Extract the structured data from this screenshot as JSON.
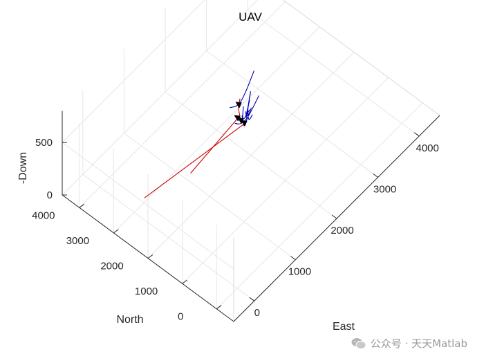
{
  "chart_data": {
    "type": "line3d",
    "title": "UAV",
    "xlabel": "East",
    "ylabel": "North",
    "zlabel": "-Down",
    "x_ticks": [
      "0",
      "1000",
      "2000",
      "3000",
      "4000"
    ],
    "y_ticks": [
      "0",
      "1000",
      "2000",
      "3000",
      "4000"
    ],
    "z_ticks": [
      "0",
      "500"
    ],
    "xlim": [
      -500,
      4500
    ],
    "ylim": [
      -500,
      4500
    ],
    "zlim": [
      0,
      800
    ],
    "grid": true,
    "series": [
      {
        "color": "#0000b0",
        "points": [
          [
            1800,
            1800,
            650
          ],
          [
            1900,
            2000,
            450
          ],
          [
            2050,
            2200,
            300
          ],
          [
            2250,
            2350,
            220
          ]
        ]
      },
      {
        "color": "#0000b0",
        "points": [
          [
            1650,
            1800,
            650
          ],
          [
            1800,
            2000,
            450
          ],
          [
            2000,
            2200,
            300
          ],
          [
            2300,
            2400,
            220
          ]
        ]
      },
      {
        "color": "#0000b0",
        "points": [
          [
            1700,
            1900,
            520
          ],
          [
            1900,
            2100,
            320
          ],
          [
            2100,
            2300,
            180
          ],
          [
            2550,
            2650,
            80
          ]
        ]
      },
      {
        "color": "#0000b0",
        "points": [
          [
            1950,
            1950,
            640
          ],
          [
            2050,
            2150,
            380
          ],
          [
            2200,
            2300,
            190
          ],
          [
            2450,
            2500,
            90
          ]
        ]
      },
      {
        "color": "#0000b0",
        "points": [
          [
            2150,
            2200,
            480
          ],
          [
            2200,
            2350,
            250
          ],
          [
            2300,
            2500,
            120
          ],
          [
            2500,
            2750,
            40
          ]
        ]
      },
      {
        "color": "#0000b0",
        "points": [
          [
            2450,
            2450,
            520
          ],
          [
            2400,
            2650,
            280
          ],
          [
            2400,
            2850,
            120
          ],
          [
            2400,
            3100,
            30
          ]
        ]
      },
      {
        "color": "#0000b0",
        "points": [
          [
            1650,
            2050,
            430
          ],
          [
            1950,
            2250,
            260
          ],
          [
            2300,
            2450,
            140
          ],
          [
            2900,
            2850,
            10
          ]
        ]
      },
      {
        "color": "#cc0000",
        "points": [
          [
            200,
            1600,
            630
          ],
          [
            2000,
            2400,
            250
          ]
        ]
      },
      {
        "color": "#cc0000",
        "points": [
          [
            -500,
            2100,
            550
          ],
          [
            2000,
            2200,
            250
          ]
        ]
      },
      {
        "color": "#cc0000",
        "points": [
          [
            1480,
            1750,
            730
          ],
          [
            2000,
            2300,
            250
          ]
        ]
      },
      {
        "color": "#cc0000",
        "points": [
          [
            1650,
            1900,
            700
          ],
          [
            2200,
            2600,
            250
          ]
        ]
      }
    ],
    "markers": [
      {
        "color": "#000000",
        "point": [
          2000,
          2400,
          250
        ]
      },
      {
        "color": "#000000",
        "point": [
          2000,
          2200,
          250
        ]
      },
      {
        "color": "#000000",
        "point": [
          2000,
          2300,
          250
        ]
      },
      {
        "color": "#000000",
        "point": [
          2200,
          2600,
          250
        ]
      }
    ]
  },
  "watermark": {
    "text": "公众号 · 天天Matlab",
    "icon": "wechat-icon"
  }
}
